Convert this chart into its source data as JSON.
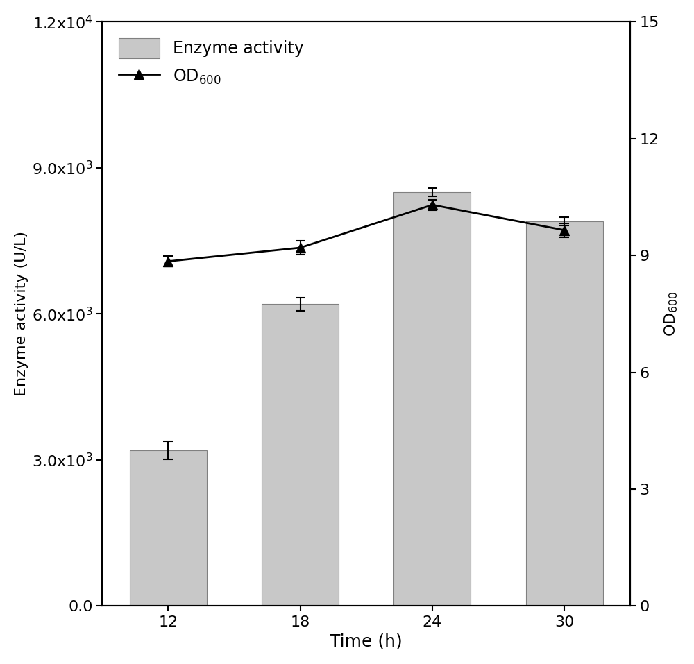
{
  "time_points": [
    12,
    18,
    24,
    30
  ],
  "enzyme_activity": [
    3200,
    6200,
    8500,
    7900
  ],
  "enzyme_activity_err": [
    180,
    130,
    90,
    90
  ],
  "od600": [
    8.85,
    9.2,
    10.3,
    9.65
  ],
  "od600_err": [
    0.13,
    0.18,
    0.13,
    0.18
  ],
  "bar_color": "#c8c8c8",
  "bar_edgecolor": "#808080",
  "line_color": "#000000",
  "marker": "^",
  "marker_color": "#000000",
  "xlabel": "Time (h)",
  "ylabel_left": "Enzyme activity (U/L)",
  "ylabel_right": "OD$_{600}$",
  "ylim_left": [
    0,
    12000
  ],
  "ylim_right": [
    0,
    15
  ],
  "yticks_left": [
    0,
    3000,
    6000,
    9000,
    12000
  ],
  "ytick_labels_left": [
    "0.0",
    "3.0x10$^3$",
    "6.0x10$^3$",
    "9.0x10$^3$",
    "1.2x10$^4$"
  ],
  "yticks_right": [
    0,
    3,
    6,
    9,
    12,
    15
  ],
  "legend_bar_label": "Enzyme activity",
  "legend_line_label": "OD$_{600}$",
  "bar_width": 3.5,
  "figsize": [
    10.0,
    9.57
  ],
  "dpi": 100,
  "background_color": "#ffffff",
  "tick_fontsize": 16,
  "label_fontsize": 18,
  "legend_fontsize": 17
}
